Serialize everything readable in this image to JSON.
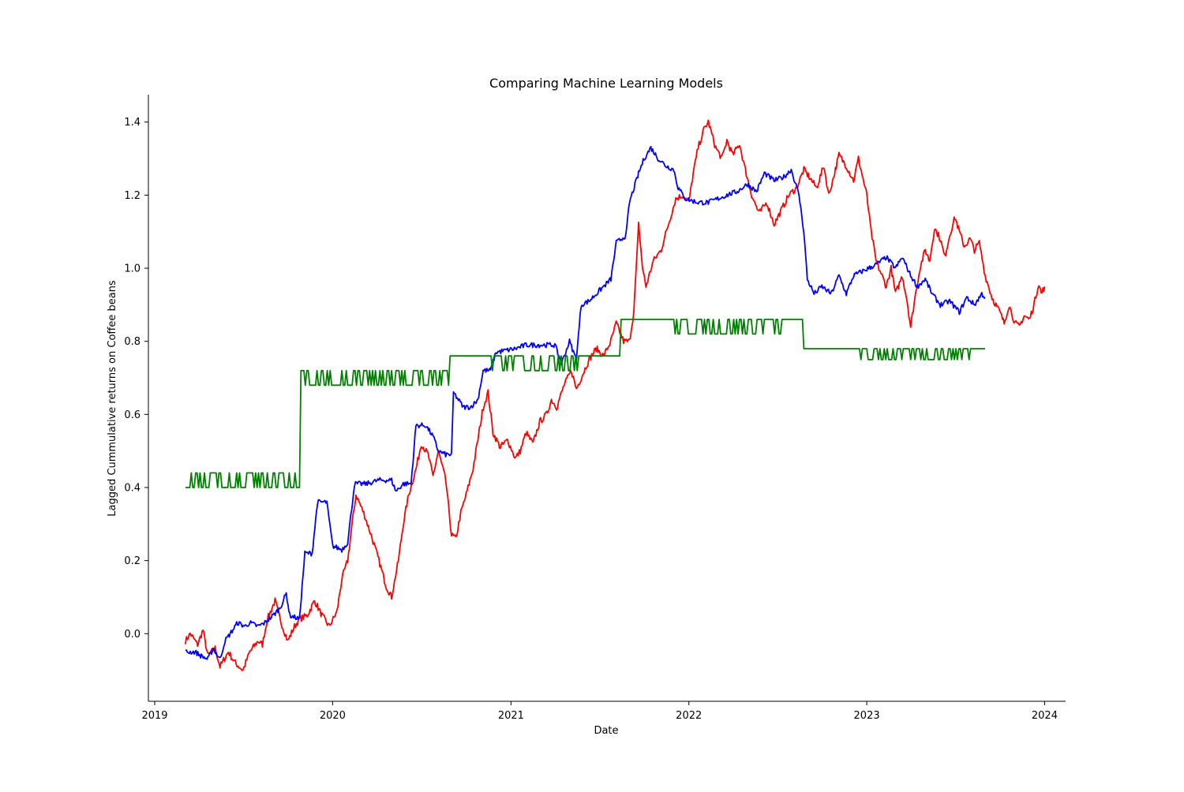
{
  "chart_data": {
    "type": "line",
    "title": "Comparing Machine Learning Models",
    "xlabel": "Date",
    "ylabel": "Lagged Cummulative returns on Coffee beans",
    "x_ticks": [
      "2019",
      "2020",
      "2021",
      "2022",
      "2023",
      "2024"
    ],
    "y_ticks": [
      "0.0",
      "0.2",
      "0.4",
      "0.6",
      "0.8",
      "1.0",
      "1.2",
      "1.4"
    ],
    "xlim": [
      "2018-12-19",
      "2024-02-13"
    ],
    "ylim": [
      -0.185,
      1.475
    ],
    "grid": false,
    "legend": "none",
    "series": [
      {
        "color": "#ff0000",
        "points": [
          [
            "2019-03-05",
            -0.02
          ],
          [
            "2019-03-15",
            0.0
          ],
          [
            "2019-03-30",
            -0.03
          ],
          [
            "2019-04-10",
            0.01
          ],
          [
            "2019-04-20",
            -0.06
          ],
          [
            "2019-05-05",
            -0.04
          ],
          [
            "2019-05-15",
            -0.09
          ],
          [
            "2019-06-01",
            -0.05
          ],
          [
            "2019-06-15",
            -0.08
          ],
          [
            "2019-07-01",
            -0.1
          ],
          [
            "2019-07-15",
            -0.05
          ],
          [
            "2019-08-01",
            -0.02
          ],
          [
            "2019-08-10",
            -0.03
          ],
          [
            "2019-08-20",
            0.04
          ],
          [
            "2019-09-05",
            0.09
          ],
          [
            "2019-09-15",
            0.04
          ],
          [
            "2019-10-01",
            -0.02
          ],
          [
            "2019-10-15",
            0.02
          ],
          [
            "2019-10-25",
            0.04
          ],
          [
            "2019-11-10",
            0.05
          ],
          [
            "2019-11-25",
            0.09
          ],
          [
            "2019-12-10",
            0.05
          ],
          [
            "2019-12-25",
            0.02
          ],
          [
            "2020-01-10",
            0.06
          ],
          [
            "2020-01-20",
            0.15
          ],
          [
            "2020-02-01",
            0.2
          ],
          [
            "2020-02-10",
            0.3
          ],
          [
            "2020-02-18",
            0.38
          ],
          [
            "2020-03-05",
            0.33
          ],
          [
            "2020-03-20",
            0.27
          ],
          [
            "2020-04-05",
            0.2
          ],
          [
            "2020-04-20",
            0.13
          ],
          [
            "2020-05-01",
            0.1
          ],
          [
            "2020-05-15",
            0.2
          ],
          [
            "2020-05-25",
            0.3
          ],
          [
            "2020-06-05",
            0.38
          ],
          [
            "2020-06-20",
            0.45
          ],
          [
            "2020-07-01",
            0.52
          ],
          [
            "2020-07-15",
            0.49
          ],
          [
            "2020-07-25",
            0.43
          ],
          [
            "2020-08-05",
            0.5
          ],
          [
            "2020-08-20",
            0.42
          ],
          [
            "2020-09-01",
            0.27
          ],
          [
            "2020-09-10",
            0.26
          ],
          [
            "2020-09-20",
            0.33
          ],
          [
            "2020-10-01",
            0.38
          ],
          [
            "2020-10-15",
            0.45
          ],
          [
            "2020-10-25",
            0.53
          ],
          [
            "2020-11-05",
            0.62
          ],
          [
            "2020-11-15",
            0.66
          ],
          [
            "2020-11-25",
            0.55
          ],
          [
            "2020-12-10",
            0.51
          ],
          [
            "2020-12-25",
            0.53
          ],
          [
            "2021-01-10",
            0.48
          ],
          [
            "2021-01-20",
            0.5
          ],
          [
            "2021-02-01",
            0.55
          ],
          [
            "2021-02-15",
            0.52
          ],
          [
            "2021-03-01",
            0.58
          ],
          [
            "2021-03-15",
            0.6
          ],
          [
            "2021-03-25",
            0.64
          ],
          [
            "2021-04-05",
            0.62
          ],
          [
            "2021-04-20",
            0.68
          ],
          [
            "2021-05-05",
            0.72
          ],
          [
            "2021-05-15",
            0.67
          ],
          [
            "2021-05-25",
            0.7
          ],
          [
            "2021-06-10",
            0.75
          ],
          [
            "2021-06-25",
            0.78
          ],
          [
            "2021-07-10",
            0.76
          ],
          [
            "2021-07-25",
            0.8
          ],
          [
            "2021-08-05",
            0.85
          ],
          [
            "2021-08-20",
            0.8
          ],
          [
            "2021-09-01",
            0.8
          ],
          [
            "2021-09-10",
            0.88
          ],
          [
            "2021-09-20",
            1.12
          ],
          [
            "2021-09-28",
            1.0
          ],
          [
            "2021-10-05",
            0.95
          ],
          [
            "2021-10-20",
            1.02
          ],
          [
            "2021-11-05",
            1.05
          ],
          [
            "2021-11-20",
            1.12
          ],
          [
            "2021-12-05",
            1.19
          ],
          [
            "2021-12-20",
            1.2
          ],
          [
            "2022-01-01",
            1.18
          ],
          [
            "2022-01-10",
            1.26
          ],
          [
            "2022-01-20",
            1.33
          ],
          [
            "2022-02-01",
            1.38
          ],
          [
            "2022-02-10",
            1.4
          ],
          [
            "2022-02-25",
            1.33
          ],
          [
            "2022-03-10",
            1.3
          ],
          [
            "2022-03-20",
            1.35
          ],
          [
            "2022-04-01",
            1.31
          ],
          [
            "2022-04-15",
            1.34
          ],
          [
            "2022-04-25",
            1.28
          ],
          [
            "2022-05-10",
            1.2
          ],
          [
            "2022-05-25",
            1.15
          ],
          [
            "2022-06-10",
            1.18
          ],
          [
            "2022-06-25",
            1.12
          ],
          [
            "2022-07-10",
            1.16
          ],
          [
            "2022-07-25",
            1.2
          ],
          [
            "2022-08-10",
            1.22
          ],
          [
            "2022-08-25",
            1.27
          ],
          [
            "2022-09-05",
            1.25
          ],
          [
            "2022-09-20",
            1.22
          ],
          [
            "2022-10-05",
            1.28
          ],
          [
            "2022-10-15",
            1.2
          ],
          [
            "2022-10-25",
            1.25
          ],
          [
            "2022-11-05",
            1.31
          ],
          [
            "2022-11-20",
            1.28
          ],
          [
            "2022-12-05",
            1.24
          ],
          [
            "2022-12-15",
            1.3
          ],
          [
            "2023-01-01",
            1.2
          ],
          [
            "2023-01-10",
            1.1
          ],
          [
            "2023-01-20",
            1.02
          ],
          [
            "2023-02-01",
            0.98
          ],
          [
            "2023-02-10",
            0.95
          ],
          [
            "2023-02-20",
            1.0
          ],
          [
            "2023-03-01",
            0.93
          ],
          [
            "2023-03-15",
            0.98
          ],
          [
            "2023-03-25",
            0.91
          ],
          [
            "2023-04-01",
            0.84
          ],
          [
            "2023-04-10",
            0.92
          ],
          [
            "2023-04-20",
            1.0
          ],
          [
            "2023-05-01",
            1.05
          ],
          [
            "2023-05-10",
            1.02
          ],
          [
            "2023-05-20",
            1.11
          ],
          [
            "2023-06-01",
            1.08
          ],
          [
            "2023-06-10",
            1.03
          ],
          [
            "2023-06-20",
            1.09
          ],
          [
            "2023-07-01",
            1.14
          ],
          [
            "2023-07-10",
            1.1
          ],
          [
            "2023-07-20",
            1.06
          ],
          [
            "2023-08-01",
            1.08
          ],
          [
            "2023-08-10",
            1.05
          ],
          [
            "2023-08-20",
            1.07
          ],
          [
            "2023-09-01",
            0.98
          ],
          [
            "2023-09-15",
            0.92
          ],
          [
            "2023-10-01",
            0.88
          ],
          [
            "2023-10-10",
            0.85
          ],
          [
            "2023-10-20",
            0.9
          ],
          [
            "2023-11-01",
            0.85
          ],
          [
            "2023-11-10",
            0.84
          ],
          [
            "2023-11-20",
            0.87
          ],
          [
            "2023-12-01",
            0.86
          ],
          [
            "2023-12-10",
            0.9
          ],
          [
            "2023-12-20",
            0.96
          ],
          [
            "2023-12-25",
            0.93
          ],
          [
            "2024-01-01",
            0.95
          ]
        ]
      },
      {
        "color": "#0000ff",
        "points": [
          [
            "2019-03-05",
            -0.05
          ],
          [
            "2019-03-25",
            -0.05
          ],
          [
            "2019-04-05",
            -0.06
          ],
          [
            "2019-04-20",
            -0.07
          ],
          [
            "2019-05-01",
            -0.04
          ],
          [
            "2019-05-15",
            -0.07
          ],
          [
            "2019-05-25",
            -0.02
          ],
          [
            "2019-06-05",
            0.0
          ],
          [
            "2019-06-20",
            0.03
          ],
          [
            "2019-07-05",
            0.02
          ],
          [
            "2019-07-15",
            0.03
          ],
          [
            "2019-08-01",
            0.02
          ],
          [
            "2019-08-15",
            0.03
          ],
          [
            "2019-09-01",
            0.05
          ],
          [
            "2019-09-15",
            0.07
          ],
          [
            "2019-09-28",
            0.11
          ],
          [
            "2019-10-05",
            0.05
          ],
          [
            "2019-10-25",
            0.04
          ],
          [
            "2019-11-05",
            0.22
          ],
          [
            "2019-11-20",
            0.22
          ],
          [
            "2019-12-01",
            0.36
          ],
          [
            "2019-12-20",
            0.36
          ],
          [
            "2020-01-01",
            0.24
          ],
          [
            "2020-01-20",
            0.23
          ],
          [
            "2020-02-01",
            0.25
          ],
          [
            "2020-02-15",
            0.41
          ],
          [
            "2020-03-10",
            0.41
          ],
          [
            "2020-04-05",
            0.42
          ],
          [
            "2020-05-01",
            0.42
          ],
          [
            "2020-05-10",
            0.39
          ],
          [
            "2020-05-25",
            0.41
          ],
          [
            "2020-06-10",
            0.41
          ],
          [
            "2020-06-20",
            0.57
          ],
          [
            "2020-07-10",
            0.57
          ],
          [
            "2020-07-25",
            0.54
          ],
          [
            "2020-08-05",
            0.5
          ],
          [
            "2020-08-20",
            0.49
          ],
          [
            "2020-09-01",
            0.49
          ],
          [
            "2020-09-05",
            0.66
          ],
          [
            "2020-09-25",
            0.62
          ],
          [
            "2020-10-10",
            0.62
          ],
          [
            "2020-10-25",
            0.64
          ],
          [
            "2020-11-05",
            0.72
          ],
          [
            "2020-11-20",
            0.72
          ],
          [
            "2020-12-01",
            0.77
          ],
          [
            "2021-01-10",
            0.78
          ],
          [
            "2021-02-01",
            0.79
          ],
          [
            "2021-03-10",
            0.79
          ],
          [
            "2021-04-01",
            0.79
          ],
          [
            "2021-04-15",
            0.74
          ],
          [
            "2021-05-01",
            0.8
          ],
          [
            "2021-05-15",
            0.75
          ],
          [
            "2021-05-25",
            0.9
          ],
          [
            "2021-06-10",
            0.91
          ],
          [
            "2021-06-25",
            0.93
          ],
          [
            "2021-07-10",
            0.95
          ],
          [
            "2021-07-25",
            0.97
          ],
          [
            "2021-08-05",
            1.07
          ],
          [
            "2021-08-25",
            1.09
          ],
          [
            "2021-09-01",
            1.18
          ],
          [
            "2021-09-20",
            1.26
          ],
          [
            "2021-10-01",
            1.3
          ],
          [
            "2021-10-15",
            1.33
          ],
          [
            "2021-10-30",
            1.3
          ],
          [
            "2021-11-15",
            1.28
          ],
          [
            "2021-12-01",
            1.27
          ],
          [
            "2021-12-10",
            1.22
          ],
          [
            "2021-12-25",
            1.19
          ],
          [
            "2022-01-20",
            1.18
          ],
          [
            "2022-02-10",
            1.18
          ],
          [
            "2022-03-01",
            1.19
          ],
          [
            "2022-03-20",
            1.2
          ],
          [
            "2022-04-10",
            1.21
          ],
          [
            "2022-05-01",
            1.23
          ],
          [
            "2022-05-20",
            1.21
          ],
          [
            "2022-06-05",
            1.26
          ],
          [
            "2022-06-25",
            1.24
          ],
          [
            "2022-07-15",
            1.25
          ],
          [
            "2022-07-30",
            1.27
          ],
          [
            "2022-08-15",
            1.2
          ],
          [
            "2022-08-25",
            1.1
          ],
          [
            "2022-09-01",
            0.97
          ],
          [
            "2022-09-15",
            0.93
          ],
          [
            "2022-10-01",
            0.95
          ],
          [
            "2022-10-20",
            0.93
          ],
          [
            "2022-11-05",
            0.98
          ],
          [
            "2022-11-20",
            0.93
          ],
          [
            "2022-12-05",
            0.98
          ],
          [
            "2022-12-20",
            0.99
          ],
          [
            "2023-01-05",
            1.0
          ],
          [
            "2023-01-20",
            1.01
          ],
          [
            "2023-02-10",
            1.03
          ],
          [
            "2023-03-01",
            1.0
          ],
          [
            "2023-03-15",
            1.03
          ],
          [
            "2023-04-01",
            0.98
          ],
          [
            "2023-04-15",
            0.95
          ],
          [
            "2023-05-01",
            0.97
          ],
          [
            "2023-05-15",
            0.93
          ],
          [
            "2023-06-01",
            0.9
          ],
          [
            "2023-06-20",
            0.91
          ],
          [
            "2023-07-10",
            0.88
          ],
          [
            "2023-07-25",
            0.92
          ],
          [
            "2023-08-10",
            0.9
          ],
          [
            "2023-08-25",
            0.93
          ],
          [
            "2023-09-01",
            0.92
          ]
        ]
      },
      {
        "color": "#008000",
        "points": [
          [
            "2019-03-05",
            0.4
          ],
          [
            "2019-10-25",
            0.4
          ],
          [
            "2019-10-28",
            0.72
          ],
          [
            "2019-11-10",
            0.68
          ],
          [
            "2020-06-01",
            0.68
          ],
          [
            "2020-08-25",
            0.68
          ],
          [
            "2020-08-28",
            0.76
          ],
          [
            "2020-10-15",
            0.76
          ],
          [
            "2021-04-01",
            0.76
          ],
          [
            "2021-08-10",
            0.76
          ],
          [
            "2021-08-13",
            0.86
          ],
          [
            "2021-10-20",
            0.86
          ],
          [
            "2022-08-20",
            0.86
          ],
          [
            "2022-08-23",
            0.78
          ],
          [
            "2022-12-20",
            0.78
          ],
          [
            "2023-09-01",
            0.78
          ]
        ],
        "oscillations": [
          {
            "start": "2019-03-05",
            "end": "2019-10-25",
            "low": 0.4,
            "high": 0.44
          },
          {
            "start": "2019-10-28",
            "end": "2020-08-25",
            "low": 0.68,
            "high": 0.72
          },
          {
            "start": "2020-11-20",
            "end": "2021-05-20",
            "low": 0.72,
            "high": 0.76
          },
          {
            "start": "2021-12-01",
            "end": "2022-07-20",
            "low": 0.82,
            "high": 0.86
          },
          {
            "start": "2022-12-20",
            "end": "2023-08-01",
            "low": 0.75,
            "high": 0.79
          }
        ]
      }
    ]
  }
}
